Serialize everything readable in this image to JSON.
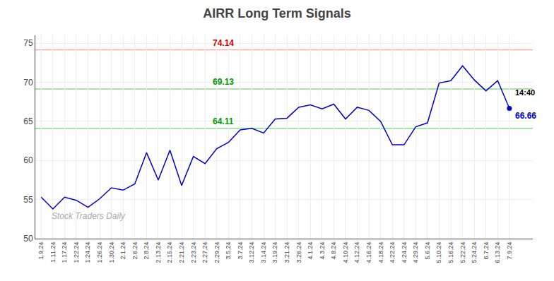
{
  "chart_data": {
    "type": "line",
    "title": "AIRR Long Term Signals",
    "categories": [
      "1.9.24",
      "1.11.24",
      "1.17.24",
      "1.22.24",
      "1.24.24",
      "1.26.24",
      "1.30.24",
      "2.1.24",
      "2.6.24",
      "2.8.24",
      "2.13.24",
      "2.15.24",
      "2.21.24",
      "2.23.24",
      "2.27.24",
      "2.29.24",
      "3.5.24",
      "3.7.24",
      "3.12.24",
      "3.14.24",
      "3.19.24",
      "3.21.24",
      "3.26.24",
      "4.1.24",
      "4.3.24",
      "4.8.24",
      "4.10.24",
      "4.12.24",
      "4.16.24",
      "4.18.24",
      "4.22.24",
      "4.24.24",
      "4.29.24",
      "5.6.24",
      "5.10.24",
      "5.16.24",
      "5.22.24",
      "5.24.24",
      "6.7.24",
      "6.13.24",
      "7.9.24"
    ],
    "values": [
      55.3,
      53.8,
      55.3,
      54.9,
      54.0,
      55.1,
      56.5,
      56.2,
      57.0,
      61.0,
      57.5,
      61.3,
      56.8,
      60.5,
      59.6,
      61.5,
      62.3,
      63.9,
      64.1,
      63.5,
      65.3,
      65.4,
      66.8,
      67.1,
      66.6,
      67.2,
      65.3,
      66.8,
      66.4,
      65.0,
      62.0,
      62.0,
      64.3,
      64.8,
      69.9,
      70.2,
      72.1,
      70.3,
      68.9,
      70.2,
      66.66
    ],
    "color": "#0000cc",
    "marker": "circle",
    "ylim": [
      50,
      76
    ],
    "yticks": [
      50,
      55,
      60,
      65,
      70,
      75
    ],
    "grid": true,
    "hlines": [
      {
        "value": 74.14,
        "color": "#ffaaaa",
        "label": "74.14",
        "label_color": "#cc0000"
      },
      {
        "value": 69.13,
        "color": "#88dd88",
        "label": "69.13",
        "label_color": "#009900"
      },
      {
        "value": 64.11,
        "color": "#88dd88",
        "label": "64.11",
        "label_color": "#009900"
      }
    ],
    "annotations": [
      {
        "text": "14:40",
        "color": "#000000"
      },
      {
        "text": "66.66",
        "color": "#0000cc"
      }
    ],
    "watermark": "Stock Traders Daily"
  }
}
